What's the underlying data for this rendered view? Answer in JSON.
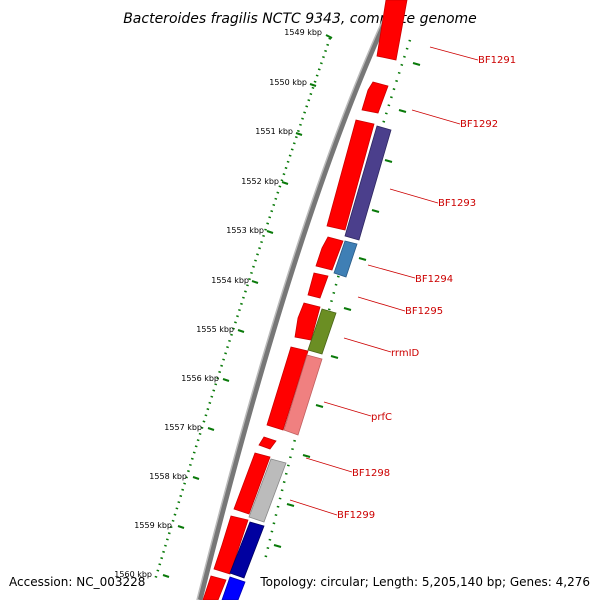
{
  "title": "Bacteroides fragilis NCTC 9343, complete genome",
  "footer": {
    "accession": "Accession: NC_003228",
    "summary": "Topology: circular; Length: 5,205,140 bp; Genes: 4,276"
  },
  "ticks": [
    {
      "label": "1549 kbp"
    },
    {
      "label": "1550 kbp"
    },
    {
      "label": "1551 kbp"
    },
    {
      "label": "1552 kbp"
    },
    {
      "label": "1553 kbp"
    },
    {
      "label": "1554 kbp"
    },
    {
      "label": "1555 kbp"
    },
    {
      "label": "1556 kbp"
    },
    {
      "label": "1557 kbp"
    },
    {
      "label": "1558 kbp"
    },
    {
      "label": "1559 kbp"
    },
    {
      "label": "1560 kbp"
    }
  ],
  "gene_labels": [
    {
      "label": "BF1291"
    },
    {
      "label": "BF1292"
    },
    {
      "label": "BF1293"
    },
    {
      "label": "BF1294"
    },
    {
      "label": "BF1295"
    },
    {
      "label": "rrmID"
    },
    {
      "label": "prfC"
    },
    {
      "label": "BF1298"
    },
    {
      "label": "BF1299"
    }
  ],
  "colors": {
    "cds": "#ff0000",
    "backbone": "#888888",
    "tick": "#006600",
    "label": "#cc0000",
    "purple": "#4b3f8c",
    "steelblue": "#3f7fb5",
    "olive": "#6b8e23",
    "salmon": "#f08080",
    "gray": "#bbbbbb",
    "navy": "#0000a0",
    "blue": "#0000ff"
  }
}
